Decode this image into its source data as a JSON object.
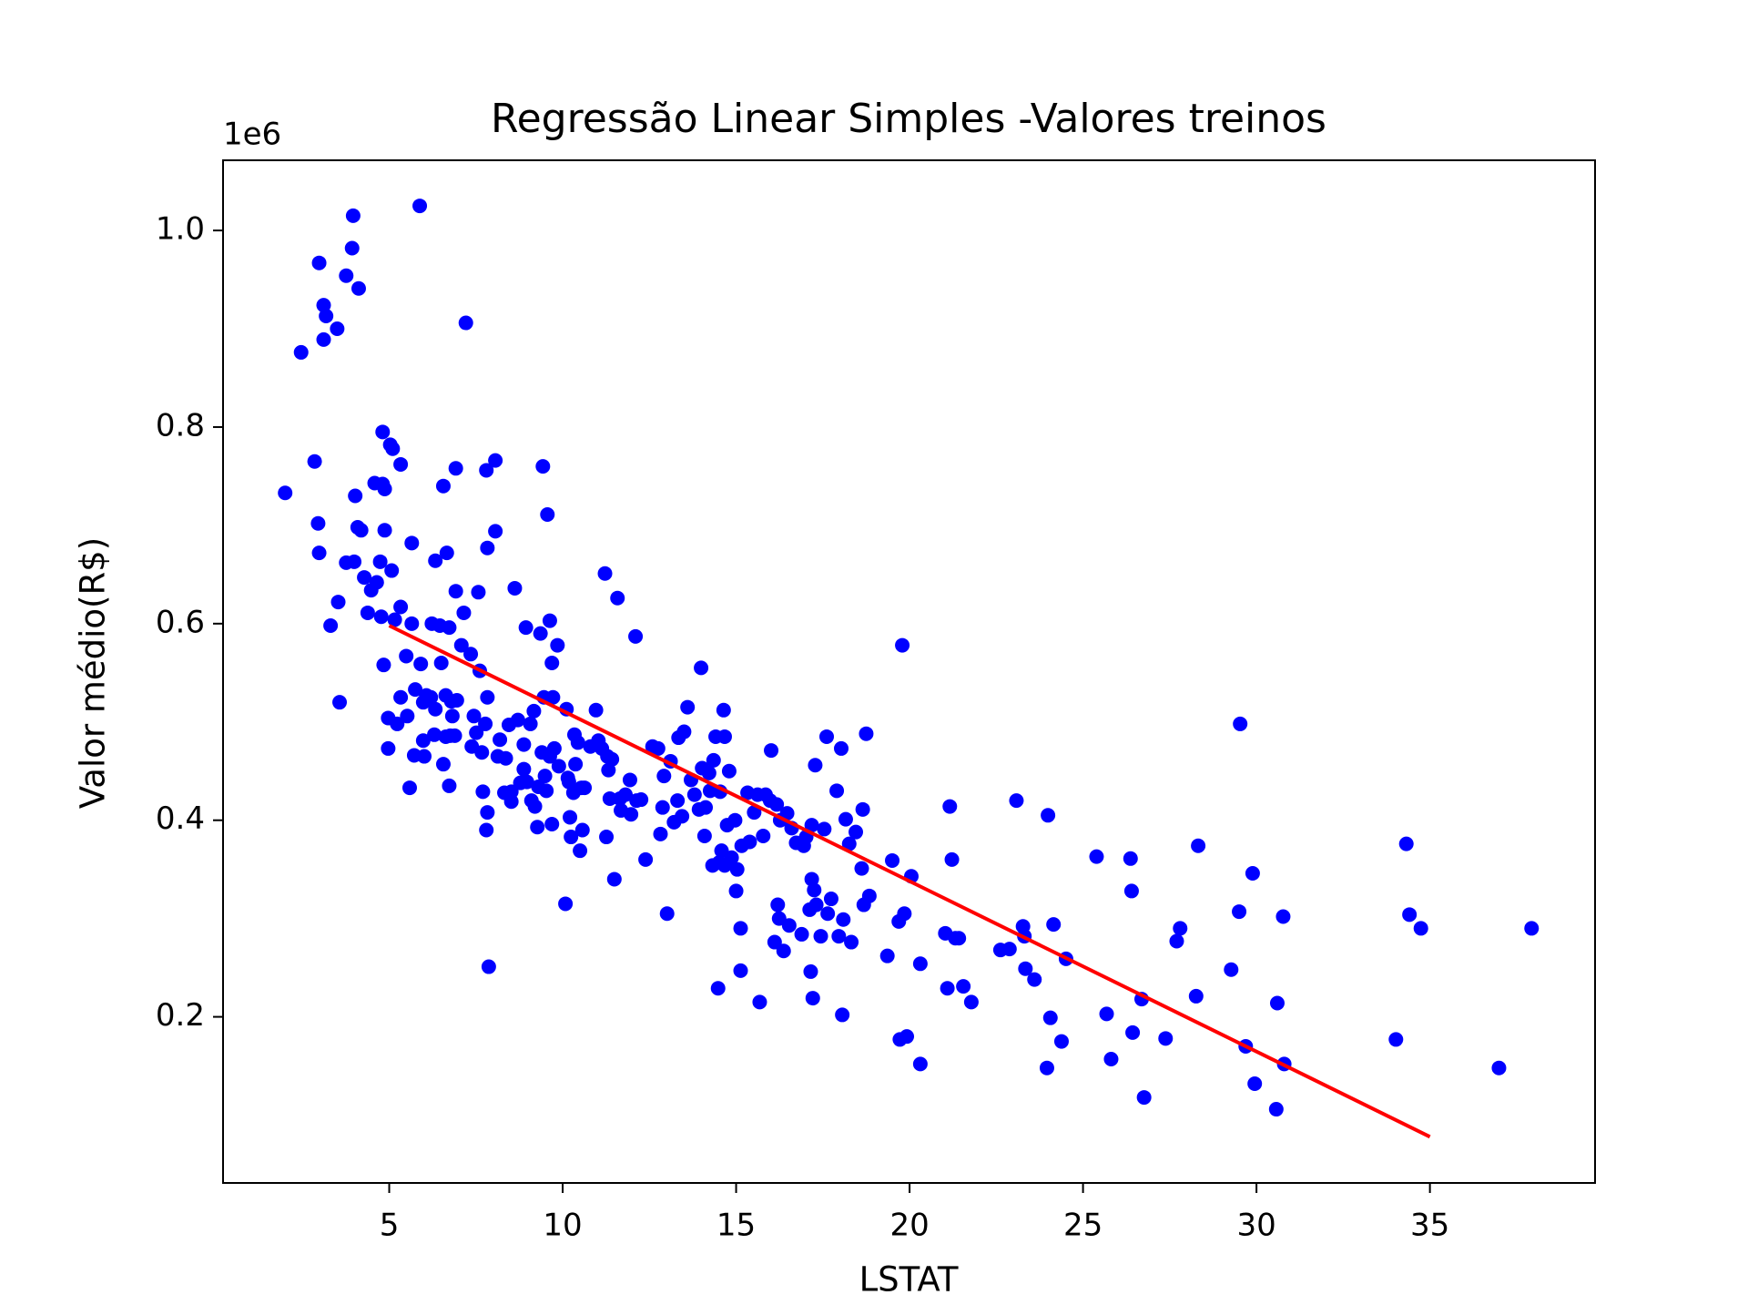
{
  "chart_data": {
    "type": "scatter",
    "title": "Regressão Linear Simples -Valores treinos",
    "x_label": "LSTAT",
    "y_label": "Valor médio(R$)",
    "y_offset_label": "1e6",
    "xlim": [
      0.21,
      39.76
    ],
    "ylim": [
      31000,
      1071400
    ],
    "xticks": [
      5,
      10,
      15,
      20,
      25,
      30,
      35
    ],
    "yticks": [
      {
        "value": 200000,
        "label": "0.2"
      },
      {
        "value": 400000,
        "label": "0.4"
      },
      {
        "value": 600000,
        "label": "0.6"
      },
      {
        "value": 800000,
        "label": "0.8"
      },
      {
        "value": 1000000,
        "label": "1.0"
      }
    ],
    "series": [
      {
        "type": "scatter",
        "color": "#0000ff",
        "x": [
          2.0,
          2.46,
          2.98,
          3.11,
          3.18,
          3.11,
          3.5,
          3.76,
          3.93,
          3.96,
          4.12,
          5.88,
          7.21,
          2.85,
          2.95,
          2.98,
          3.31,
          3.53,
          3.57,
          3.76,
          3.99,
          4.02,
          4.09,
          4.19,
          4.28,
          4.38,
          4.48,
          4.58,
          4.64,
          4.74,
          4.77,
          4.81,
          4.81,
          4.87,
          4.87,
          4.84,
          4.97,
          4.97,
          5.03,
          5.1,
          5.07,
          5.16,
          5.23,
          5.33,
          5.33,
          5.33,
          5.49,
          5.52,
          5.59,
          5.65,
          5.65,
          5.75,
          5.72,
          5.91,
          5.98,
          5.98,
          6.01,
          6.07,
          6.2,
          6.23,
          6.3,
          6.33,
          6.33,
          6.46,
          6.5,
          6.56,
          6.56,
          6.63,
          6.63,
          6.66,
          6.73,
          6.73,
          6.76,
          6.79,
          6.82,
          6.89,
          6.92,
          6.92,
          6.95,
          7.08,
          7.15,
          7.35,
          7.38,
          7.44,
          7.51,
          7.57,
          7.61,
          7.67,
          7.7,
          7.77,
          7.8,
          7.8,
          7.83,
          7.83,
          7.87,
          7.83,
          8.06,
          8.06,
          8.13,
          8.19,
          8.32,
          8.36,
          8.45,
          8.52,
          8.52,
          8.62,
          8.71,
          8.78,
          8.88,
          8.88,
          8.94,
          8.97,
          9.07,
          9.1,
          9.17,
          9.2,
          9.27,
          9.3,
          9.36,
          9.4,
          9.43,
          9.46,
          9.49,
          9.53,
          9.56,
          9.63,
          9.63,
          9.69,
          9.69,
          9.72,
          9.76,
          9.85,
          9.89,
          10.08,
          10.11,
          10.15,
          10.18,
          10.21,
          10.24,
          10.31,
          10.34,
          10.37,
          10.44,
          10.5,
          10.54,
          10.57,
          10.63,
          10.8,
          10.96,
          11.03,
          11.13,
          11.22,
          11.26,
          11.29,
          11.32,
          11.36,
          11.42,
          11.49,
          11.58,
          11.65,
          11.68,
          11.81,
          11.94,
          11.97,
          12.1,
          12.13,
          12.26,
          12.39,
          12.59,
          12.75,
          12.82,
          12.88,
          12.92,
          13.01,
          13.11,
          13.21,
          13.31,
          13.34,
          13.44,
          13.5,
          13.6,
          13.7,
          13.8,
          13.93,
          13.99,
          14.02,
          14.09,
          14.12,
          14.22,
          14.25,
          14.32,
          14.35,
          14.41,
          14.48,
          14.51,
          14.54,
          14.58,
          14.64,
          14.67,
          14.67,
          14.74,
          14.8,
          14.87,
          14.97,
          15.0,
          15.03,
          15.13,
          15.13,
          15.16,
          15.33,
          15.39,
          15.52,
          15.62,
          15.68,
          15.78,
          15.85,
          15.98,
          16.01,
          16.11,
          16.17,
          16.2,
          16.24,
          16.27,
          16.37,
          16.47,
          16.53,
          16.6,
          16.73,
          16.89,
          16.95,
          17.02,
          17.12,
          17.15,
          17.18,
          17.18,
          17.21,
          17.25,
          17.28,
          17.31,
          17.44,
          17.54,
          17.61,
          17.64,
          17.74,
          17.9,
          17.96,
          18.03,
          18.06,
          18.09,
          18.16,
          18.26,
          18.32,
          18.45,
          18.62,
          18.65,
          18.68,
          18.75,
          18.84,
          19.36,
          19.5,
          19.69,
          19.72,
          19.79,
          19.85,
          19.92,
          20.05,
          20.31,
          20.31,
          21.03,
          21.09,
          21.16,
          21.22,
          21.32,
          21.42,
          21.55,
          21.78,
          22.62,
          22.88,
          23.08,
          23.27,
          23.31,
          23.34,
          23.6,
          23.96,
          23.99,
          24.06,
          24.15,
          24.38,
          24.51,
          25.39,
          25.68,
          25.81,
          26.37,
          26.4,
          26.43,
          26.69,
          26.76,
          27.38,
          27.7,
          27.8,
          28.26,
          28.32,
          29.27,
          29.5,
          29.53,
          29.69,
          29.89,
          29.95,
          30.57,
          30.6,
          30.77,
          30.8,
          34.02,
          34.32,
          34.41,
          34.74,
          36.99,
          37.93
        ],
        "values": [
          733000,
          876000,
          967000,
          924000,
          913000,
          889000,
          900000,
          954000,
          982000,
          1015000,
          941000,
          1025000,
          906000,
          765000,
          702000,
          672000,
          598000,
          622000,
          520000,
          662000,
          663000,
          730000,
          698000,
          695000,
          647000,
          611000,
          634000,
          743000,
          642000,
          663000,
          607000,
          795000,
          742000,
          737000,
          695000,
          558000,
          504000,
          473000,
          782000,
          778000,
          654000,
          604000,
          498000,
          762000,
          617000,
          525000,
          567000,
          506000,
          433000,
          600000,
          682000,
          533000,
          466000,
          559000,
          520000,
          481000,
          465000,
          527000,
          525000,
          600000,
          487000,
          664000,
          513000,
          598000,
          560000,
          740000,
          457000,
          527000,
          485000,
          672000,
          596000,
          435000,
          486000,
          521000,
          506000,
          486000,
          758000,
          633000,
          522000,
          578000,
          611000,
          569000,
          475000,
          506000,
          489000,
          632000,
          552000,
          469000,
          429000,
          498000,
          756000,
          390000,
          677000,
          408000,
          251000,
          525000,
          766000,
          694000,
          465000,
          482000,
          428000,
          463000,
          497000,
          429000,
          419000,
          636000,
          502000,
          438000,
          452000,
          477000,
          596000,
          439000,
          498000,
          420000,
          511000,
          414000,
          393000,
          434000,
          590000,
          469000,
          760000,
          525000,
          445000,
          430000,
          711000,
          603000,
          465000,
          560000,
          396000,
          525000,
          473000,
          578000,
          455000,
          315000,
          513000,
          443000,
          439000,
          403000,
          383000,
          428000,
          487000,
          457000,
          479000,
          369000,
          433000,
          390000,
          433000,
          475000,
          512000,
          481000,
          473000,
          651000,
          383000,
          465000,
          451000,
          422000,
          462000,
          340000,
          626000,
          422000,
          410000,
          426000,
          441000,
          406000,
          587000,
          420000,
          421000,
          360000,
          475000,
          473000,
          386000,
          413000,
          445000,
          305000,
          460000,
          398000,
          420000,
          484000,
          404000,
          490000,
          515000,
          441000,
          426000,
          411000,
          555000,
          453000,
          384000,
          413000,
          448000,
          430000,
          354000,
          461000,
          485000,
          229000,
          357000,
          429000,
          369000,
          512000,
          485000,
          354000,
          395000,
          450000,
          362000,
          400000,
          328000,
          350000,
          290000,
          247000,
          374000,
          428000,
          378000,
          408000,
          426000,
          215000,
          384000,
          426000,
          420000,
          471000,
          276000,
          416000,
          314000,
          300000,
          400000,
          267000,
          407000,
          293000,
          392000,
          377000,
          284000,
          374000,
          383000,
          309000,
          246000,
          395000,
          340000,
          219000,
          329000,
          456000,
          314000,
          282000,
          391000,
          485000,
          305000,
          320000,
          430000,
          282000,
          473000,
          202000,
          299000,
          401000,
          376000,
          276000,
          388000,
          351000,
          411000,
          314000,
          488000,
          323000,
          262000,
          359000,
          297000,
          177000,
          578000,
          305000,
          180000,
          343000,
          152000,
          254000,
          285000,
          229000,
          414000,
          360000,
          280000,
          280000,
          231000,
          215000,
          268000,
          269000,
          420000,
          292000,
          282000,
          249000,
          238000,
          148000,
          405000,
          199000,
          294000,
          175000,
          259000,
          363000,
          203000,
          157000,
          361000,
          328000,
          184000,
          218000,
          118000,
          178000,
          277000,
          290000,
          221000,
          374000,
          248000,
          307000,
          498000,
          170000,
          346000,
          132000,
          106000,
          214000,
          302000,
          152000,
          177000,
          376000,
          304000,
          290000,
          148000,
          290000
        ]
      },
      {
        "type": "line",
        "color": "#ff0000",
        "x": [
          5,
          35
        ],
        "values": [
          598000,
          78000
        ]
      }
    ]
  }
}
